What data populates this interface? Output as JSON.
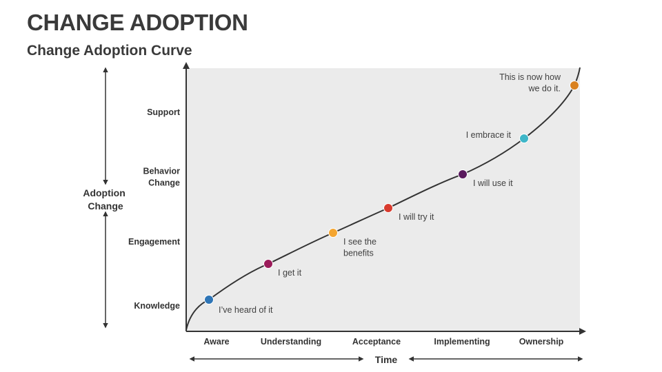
{
  "title": "CHANGE ADOPTION",
  "subtitle": "Change Adoption Curve",
  "y_axis_title": [
    "Adoption",
    "Change"
  ],
  "x_axis_title": "Time",
  "y_levels": [
    {
      "lines": [
        "Support"
      ]
    },
    {
      "lines": [
        "Behavior",
        "Change"
      ]
    },
    {
      "lines": [
        "Engagement"
      ]
    },
    {
      "lines": [
        "Knowledge"
      ]
    }
  ],
  "x_stages": [
    "Aware",
    "Understanding",
    "Acceptance",
    "Implementing",
    "Ownership"
  ],
  "points": [
    {
      "label": [
        "I’ve heard of it"
      ],
      "color": "#2e75b6"
    },
    {
      "label": [
        "I get it"
      ],
      "color": "#9b1b5a"
    },
    {
      "label": [
        "I see the",
        "benefits"
      ],
      "color": "#f4a530"
    },
    {
      "label": [
        "I will try it"
      ],
      "color": "#d83b2e"
    },
    {
      "label": [
        "I will use it"
      ],
      "color": "#5a1a5e"
    },
    {
      "label": [
        "I embrace it"
      ],
      "color": "#3eb6c8"
    },
    {
      "label": [
        "This is now how",
        "we do it."
      ],
      "color": "#d9811f"
    }
  ],
  "colors": {
    "plot_background": "#ebebeb",
    "curve": "#333333",
    "axes": "#333333",
    "text": "#3a3a3a"
  }
}
